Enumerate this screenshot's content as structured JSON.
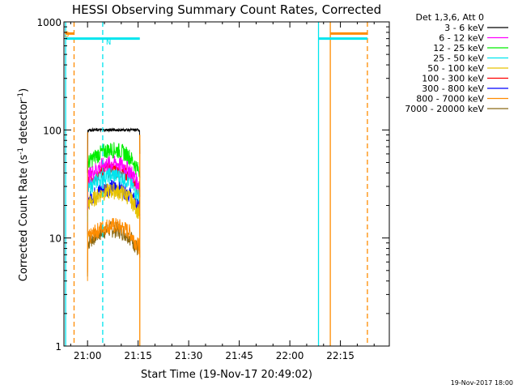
{
  "chart_data": {
    "type": "line",
    "title": "HESSI Observing Summary Count Rates, Corrected",
    "xlabel": "Start Time (19-Nov-17 20:49:02)",
    "ylabel_main": "Corrected Count Rate (s",
    "ylabel_sup1": "-1",
    "ylabel_mid": " detector",
    "ylabel_sup2": "-1",
    "ylabel_end": ")",
    "yscale": "log",
    "ylim": [
      1,
      1000
    ],
    "xlim_minutes": [
      -7,
      89.5
    ],
    "x_ticks": [
      "21:00",
      "21:15",
      "21:30",
      "21:45",
      "22:00",
      "22:15"
    ],
    "x_tick_minutes": [
      0,
      15,
      30,
      45,
      60,
      75
    ],
    "y_ticks": [
      "1",
      "10",
      "100",
      "1000"
    ],
    "y_tick_values": [
      1,
      10,
      100,
      1000
    ],
    "data_range_minutes": [
      0,
      15.5
    ],
    "legend_title": "Det 1,3,6, Att 0",
    "series": [
      {
        "name": "3 - 6 keV",
        "color": "#000000",
        "level": 100,
        "shape": "flat"
      },
      {
        "name": "6 - 12 keV",
        "color": "#ff00ff",
        "level": 45,
        "shape": "arch"
      },
      {
        "name": "12 - 25 keV",
        "color": "#00ee00",
        "level": 60,
        "shape": "arch"
      },
      {
        "name": "25 - 50 keV",
        "color": "#00e5ee",
        "level": 35,
        "shape": "arch"
      },
      {
        "name": "50 - 100 keV",
        "color": "#e6c200",
        "level": 25,
        "shape": "arch"
      },
      {
        "name": "100 - 300 keV",
        "color": "#ff0000",
        "level": 40,
        "shape": "arch"
      },
      {
        "name": "300 - 800 keV",
        "color": "#0000ff",
        "level": 27,
        "shape": "arch"
      },
      {
        "name": "800 - 7000 keV",
        "color": "#ff8c00",
        "level": 12,
        "shape": "arch"
      },
      {
        "name": "7000 - 20000 keV",
        "color": "#8b6914",
        "level": 11,
        "shape": "arch"
      }
    ],
    "events": [
      {
        "type": "solid",
        "color": "#00e5ee",
        "minute": -6.5
      },
      {
        "type": "dashed",
        "color": "#ff8c00",
        "minute": -4
      },
      {
        "type": "dashed",
        "color": "#00e5ee",
        "minute": 4.5
      },
      {
        "type": "solid",
        "color": "#00e5ee",
        "minute": 68.5
      },
      {
        "type": "solid",
        "color": "#ff8c00",
        "minute": 72
      },
      {
        "type": "dashed",
        "color": "#ff8c00",
        "minute": 83
      }
    ],
    "flag_bars": [
      {
        "color": "#00e5ee",
        "from": -6.5,
        "to": 15.5,
        "value": 700
      },
      {
        "color": "#ff8c00",
        "from": -6.5,
        "to": -4,
        "value": 780
      },
      {
        "color": "#00e5ee",
        "from": 68.5,
        "to": 83,
        "value": 700
      },
      {
        "color": "#ff8c00",
        "from": 72,
        "to": 83,
        "value": 780
      }
    ],
    "annotations": [
      {
        "text": "S",
        "color": "#ff8c00",
        "minute": -6.9,
        "value": 780
      },
      {
        "text": "N",
        "color": "#00e5ee",
        "minute": 5.5,
        "value": 660
      }
    ],
    "footer_date": "19-Nov-2017 18:00"
  }
}
